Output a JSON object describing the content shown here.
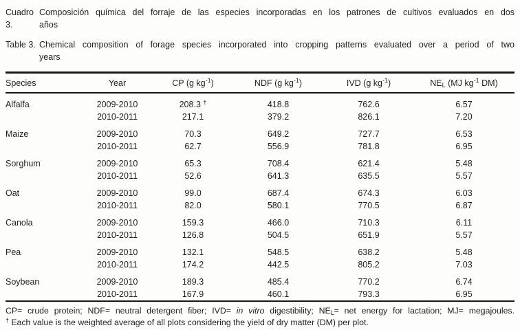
{
  "document": {
    "background": "#fdfdfc",
    "text_color": "#1f1f1f",
    "rule_color": "#161616"
  },
  "captions": [
    {
      "label": "Cuadro 3.",
      "lines": [
        "Composición química del forraje de las especies incorporadas en los patrones de cultivos evaluados en dos",
        "años"
      ]
    },
    {
      "label": "Table 3.",
      "lines": [
        "Chemical composition of forage species incorporated into cropping patterns evaluated over a period of two",
        "years"
      ]
    }
  ],
  "table": {
    "dagger": "†",
    "headers": [
      {
        "parts": [
          {
            "t": "Species"
          }
        ]
      },
      {
        "parts": [
          {
            "t": "Year"
          }
        ]
      },
      {
        "parts": [
          {
            "t": "CP (g kg"
          },
          {
            "t": "-1",
            "s": "sup"
          },
          {
            "t": ")"
          }
        ]
      },
      {
        "parts": [
          {
            "t": "NDF (g kg"
          },
          {
            "t": "-1",
            "s": "sup"
          },
          {
            "t": ")"
          }
        ]
      },
      {
        "parts": [
          {
            "t": "IVD (g kg"
          },
          {
            "t": "-1",
            "s": "sup"
          },
          {
            "t": ")"
          }
        ]
      },
      {
        "parts": [
          {
            "t": "NE"
          },
          {
            "t": "L",
            "s": "sub"
          },
          {
            "t": " (MJ kg"
          },
          {
            "t": "-1",
            "s": "sup"
          },
          {
            "t": " DM)"
          }
        ]
      }
    ],
    "groups": [
      {
        "species": "Alfalfa",
        "rows": [
          {
            "year": "2009-2010",
            "cp": "208.3",
            "cp_dagger": true,
            "ndf": "418.8",
            "ivd": "762.6",
            "nel": "6.57"
          },
          {
            "year": "2010-2011",
            "cp": "217.1",
            "ndf": "379.2",
            "ivd": "826.1",
            "nel": "7.20"
          }
        ]
      },
      {
        "species": "Maize",
        "rows": [
          {
            "year": "2009-2010",
            "cp": "70.3",
            "ndf": "649.2",
            "ivd": "727.7",
            "nel": "6.53"
          },
          {
            "year": "2010-2011",
            "cp": "62.7",
            "ndf": "556.9",
            "ivd": "781.8",
            "nel": "6.95"
          }
        ]
      },
      {
        "species": "Sorghum",
        "rows": [
          {
            "year": "2009-2010",
            "cp": "65.3",
            "ndf": "708.4",
            "ivd": "621.4",
            "nel": "5.48"
          },
          {
            "year": "2010-2011",
            "cp": "52.6",
            "ndf": "641.3",
            "ivd": "635.5",
            "nel": "5.57"
          }
        ]
      },
      {
        "species": "Oat",
        "rows": [
          {
            "year": "2009-2010",
            "cp": "99.0",
            "ndf": "687.4",
            "ivd": "674.3",
            "nel": "6.03"
          },
          {
            "year": "2010-2011",
            "cp": "82.0",
            "ndf": "580.1",
            "ivd": "770.5",
            "nel": "6.87"
          }
        ]
      },
      {
        "species": "Canola",
        "rows": [
          {
            "year": "2009-2010",
            "cp": "159.3",
            "ndf": "466.0",
            "ivd": "710.3",
            "nel": "6.11"
          },
          {
            "year": "2010-2011",
            "cp": "126.8",
            "ndf": "504.5",
            "ivd": "651.9",
            "nel": "5.57"
          }
        ]
      },
      {
        "species": "Pea",
        "rows": [
          {
            "year": "2009-2010",
            "cp": "132.1",
            "ndf": "548.5",
            "ivd": "638.2",
            "nel": "5.48"
          },
          {
            "year": "2010-2011",
            "cp": "174.2",
            "ndf": "442.5",
            "ivd": "805.2",
            "nel": "7.03"
          }
        ]
      },
      {
        "species": "Soybean",
        "rows": [
          {
            "year": "2009-2010",
            "cp": "189.3",
            "ndf": "485.4",
            "ivd": "770.2",
            "nel": "6.74"
          },
          {
            "year": "2010-2011",
            "cp": "167.9",
            "ndf": "460.1",
            "ivd": "793.3",
            "nel": "6.95"
          }
        ]
      }
    ]
  },
  "footnotes": {
    "line1_parts": [
      {
        "t": "CP= crude protein; NDF= neutral detergent fiber; IVD= "
      },
      {
        "t": "in vitro",
        "s": "i"
      },
      {
        "t": " digestibility; NE"
      },
      {
        "t": "L",
        "s": "sub"
      },
      {
        "t": "= net energy for lactation; MJ= megajoules."
      }
    ],
    "line2_parts": [
      {
        "t": "†",
        "s": "sup"
      },
      {
        "t": " Each value is the weighted average of all plots considering the yield of dry matter (DM) per plot."
      }
    ]
  }
}
